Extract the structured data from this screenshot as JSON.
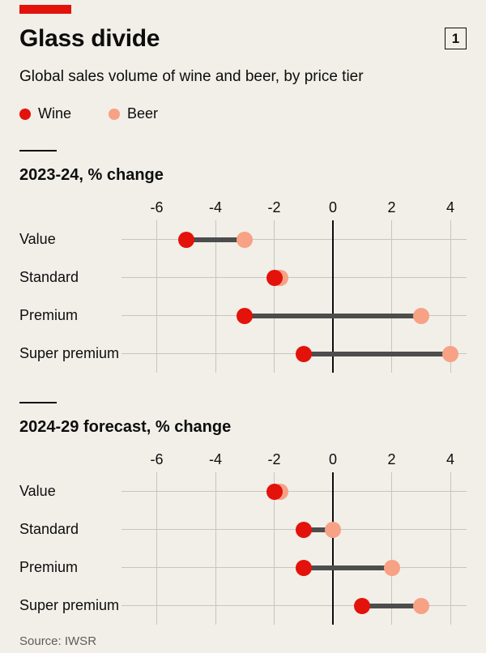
{
  "page": {
    "title": "Glass divide",
    "figure_number": "1",
    "subtitle": "Global sales volume of wine and beer, by price tier",
    "source": "Source: IWSR"
  },
  "legend": [
    {
      "label": "Wine",
      "color": "#e3120b"
    },
    {
      "label": "Beer",
      "color": "#f7a185"
    }
  ],
  "colors": {
    "background": "#f1efe8",
    "brand_red": "#e3120b",
    "wine": "#e3120b",
    "beer": "#f7a185",
    "connector": "#4d4d4d",
    "grid": "#c8c5bc",
    "zero_line": "#0d0d0d",
    "text": "#0d0d0d",
    "source_text": "#5f5d58"
  },
  "chart_data": [
    {
      "type": "dumbbell",
      "title": "2023-24, % change",
      "categories": [
        "Value",
        "Standard",
        "Premium",
        "Super premium"
      ],
      "series": [
        {
          "name": "Wine",
          "values": [
            -5,
            -2,
            -3,
            -1
          ]
        },
        {
          "name": "Beer",
          "values": [
            -3,
            -1.8,
            3,
            4
          ]
        }
      ],
      "ticks": [
        -6,
        -4,
        -2,
        0,
        2,
        4
      ],
      "xlim": [
        -7.2,
        4.55
      ],
      "xlabel": "",
      "ylabel": "",
      "grid": true,
      "legend_position": "top"
    },
    {
      "type": "dumbbell",
      "title": "2024-29 forecast, % change",
      "categories": [
        "Value",
        "Standard",
        "Premium",
        "Super premium"
      ],
      "series": [
        {
          "name": "Wine",
          "values": [
            -2,
            -1,
            -1,
            1
          ]
        },
        {
          "name": "Beer",
          "values": [
            -1.8,
            0,
            2,
            3
          ]
        }
      ],
      "ticks": [
        -6,
        -4,
        -2,
        0,
        2,
        4
      ],
      "xlim": [
        -7.2,
        4.55
      ],
      "xlabel": "",
      "ylabel": "",
      "grid": true,
      "legend_position": "top"
    }
  ]
}
